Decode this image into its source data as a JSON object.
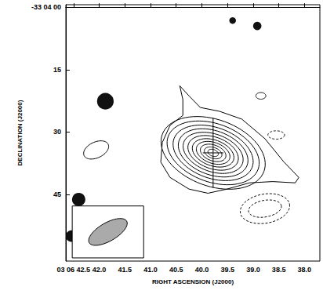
{
  "chart_data": {
    "type": "contour",
    "xlabel": "RIGHT ASCENSION (J2000)",
    "ylabel": "DECLINATION (J2000)",
    "xlim": [
      42.65,
      37.7
    ],
    "ylim": [
      -0.6,
      61
    ],
    "xticks": [
      {
        "value": 42.5,
        "label": "03 06 42.5"
      },
      {
        "value": 42,
        "label": "42.0"
      },
      41.5,
      {
        "value": 41,
        "label": "41.0"
      },
      40.5,
      {
        "value": 40,
        "label": "40.0"
      },
      39.5,
      {
        "value": 39,
        "label": "39.0"
      },
      38.5,
      {
        "value": 38,
        "label": "38.0"
      }
    ],
    "yticks": [
      {
        "value": 0,
        "label": "-33 04 00"
      },
      15,
      30,
      45
    ],
    "grid": false,
    "contours": [
      {
        "line_style": "solid",
        "points": [
          [
            40.43,
            18.9
          ],
          [
            40.25,
            21.3
          ],
          [
            40.03,
            24.1
          ],
          [
            39.66,
            25.0
          ],
          [
            39.22,
            26.9
          ],
          [
            38.77,
            31.6
          ],
          [
            38.4,
            37.2
          ],
          [
            38.11,
            40.9
          ],
          [
            38.18,
            42.2
          ],
          [
            38.62,
            41.9
          ],
          [
            39.07,
            42.2
          ],
          [
            39.51,
            43.7
          ],
          [
            39.88,
            44.7
          ],
          [
            40.25,
            43.7
          ],
          [
            40.62,
            40.9
          ],
          [
            40.8,
            37.2
          ],
          [
            40.77,
            32.5
          ],
          [
            40.62,
            28.4
          ],
          [
            40.37,
            26.0
          ],
          [
            40.37,
            22.2
          ]
        ]
      },
      {
        "line_style": "solid",
        "center": [
          39.78,
          35
        ],
        "a": 13,
        "b": 8,
        "angle": 20
      },
      {
        "line_style": "solid",
        "center": [
          39.78,
          35
        ],
        "a": 11.5,
        "b": 7,
        "angle": 20
      },
      {
        "line_style": "solid",
        "center": [
          39.78,
          35
        ],
        "a": 10,
        "b": 6.1,
        "angle": 20
      },
      {
        "line_style": "solid",
        "center": [
          39.78,
          35
        ],
        "a": 8.7,
        "b": 5.3,
        "angle": 20
      },
      {
        "line_style": "solid",
        "center": [
          39.78,
          35
        ],
        "a": 7.5,
        "b": 4.5,
        "angle": 20
      },
      {
        "line_style": "solid",
        "center": [
          39.78,
          35
        ],
        "a": 6.3,
        "b": 3.8,
        "angle": 20
      },
      {
        "line_style": "solid",
        "center": [
          39.78,
          35
        ],
        "a": 5.2,
        "b": 3.1,
        "angle": 20
      },
      {
        "line_style": "solid",
        "center": [
          39.78,
          35
        ],
        "a": 4.2,
        "b": 2.5,
        "angle": 20
      },
      {
        "line_style": "solid",
        "center": [
          39.78,
          35
        ],
        "a": 3.2,
        "b": 1.9,
        "angle": 20
      },
      {
        "line_style": "solid",
        "center": [
          39.78,
          35
        ],
        "a": 2.2,
        "b": 1.3,
        "angle": 20
      },
      {
        "line_style": "solid",
        "center": [
          39.78,
          35
        ],
        "a": 1.3,
        "b": 0.8,
        "angle": 20
      },
      {
        "line_style": "solid",
        "center": [
          42.06,
          34.3
        ],
        "a": 3.2,
        "b": 1.9,
        "angle": -25
      },
      {
        "line_style": "solid",
        "center": [
          38.85,
          21.3
        ],
        "a": 1.2,
        "b": 0.8,
        "angle": 0
      },
      {
        "line_style": "dashed",
        "center": [
          38.55,
          30.7
        ],
        "a": 2,
        "b": 1,
        "angle": 0
      },
      {
        "line_style": "dashed",
        "center": [
          38.77,
          48.4
        ],
        "a": 6,
        "b": 3.5,
        "angle": -10
      },
      {
        "line_style": "dashed",
        "center": [
          38.77,
          48.4
        ],
        "a": 4,
        "b": 2,
        "angle": -10
      }
    ],
    "sources": [
      {
        "ra": 41.88,
        "dec": 22.6,
        "radius": 2
      },
      {
        "ra": 42.4,
        "dec": 46.2,
        "radius": 1.6
      },
      {
        "ra": 42.54,
        "dec": 55,
        "radius": 1.4
      },
      {
        "ra": 38.92,
        "dec": 4.5,
        "radius": 1
      },
      {
        "ra": 39.4,
        "dec": 3.2,
        "radius": 0.8
      }
    ],
    "position": {
      "ra": 39.78,
      "dec": 35,
      "ra_err": 0.2,
      "dec_err": 8.4,
      "marker": "cross"
    },
    "beam": {
      "center": [
        41.83,
        54
      ],
      "a": 5.2,
      "b": 2.2,
      "angle": -30
    }
  }
}
